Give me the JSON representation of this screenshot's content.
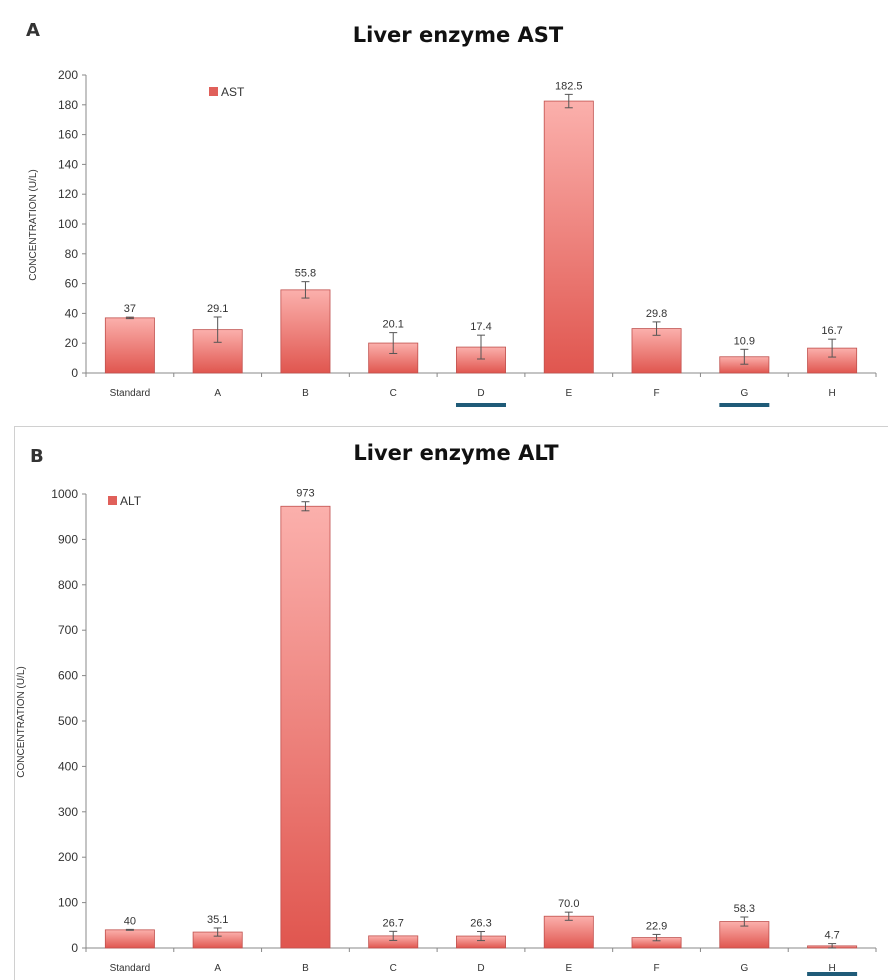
{
  "chart_data": [
    {
      "type": "bar",
      "panel_label": "A",
      "title": "Liver enzyme AST",
      "ylabel": "CONCENTRATION (U/L)",
      "xlabel": "",
      "legend": "AST",
      "legend_position": "top-left",
      "ylim": [
        0,
        200
      ],
      "yticks": [
        0,
        20,
        40,
        60,
        80,
        100,
        120,
        140,
        160,
        180,
        200
      ],
      "categories": [
        "Standard",
        "A",
        "B",
        "C",
        "D",
        "E",
        "F",
        "G",
        "H"
      ],
      "values": [
        37,
        29.1,
        55.8,
        20.1,
        17.4,
        182.5,
        29.8,
        10.9,
        16.7
      ],
      "value_labels": [
        "37",
        "29.1",
        "55.8",
        "20.1",
        "17.4",
        "182.5",
        "29.8",
        "10.9",
        "16.7"
      ],
      "errors": [
        0.5,
        8.5,
        5.5,
        7,
        8,
        4.5,
        4.5,
        5,
        6
      ],
      "underlined_categories": [
        "D",
        "G"
      ],
      "grid": false
    },
    {
      "type": "bar",
      "panel_label": "B",
      "title": "Liver enzyme ALT",
      "ylabel": "CONCENTRATION (U/L)",
      "xlabel": "",
      "legend": "ALT",
      "legend_position": "top-left",
      "ylim": [
        0,
        1000
      ],
      "yticks": [
        0,
        100,
        200,
        300,
        400,
        500,
        600,
        700,
        800,
        900,
        1000
      ],
      "categories": [
        "Standard",
        "A",
        "B",
        "C",
        "D",
        "E",
        "F",
        "G",
        "H"
      ],
      "values": [
        40,
        35.1,
        973,
        26.7,
        26.3,
        70.0,
        22.9,
        58.3,
        4.7
      ],
      "value_labels": [
        "40",
        "35.1",
        "973",
        "26.7",
        "26.3",
        "70.0",
        "22.9",
        "58.3",
        "4.7"
      ],
      "errors": [
        1,
        9,
        10,
        10,
        10,
        9,
        7,
        10,
        5
      ],
      "underlined_categories": [
        "H"
      ],
      "grid": false
    }
  ],
  "colors": {
    "bar_top": "#fbb0ac",
    "bar_bottom": "#e0564f",
    "bar_edge": "#c0504d",
    "underline": "#1f5b78",
    "axis": "#888888",
    "text": "#333333"
  }
}
